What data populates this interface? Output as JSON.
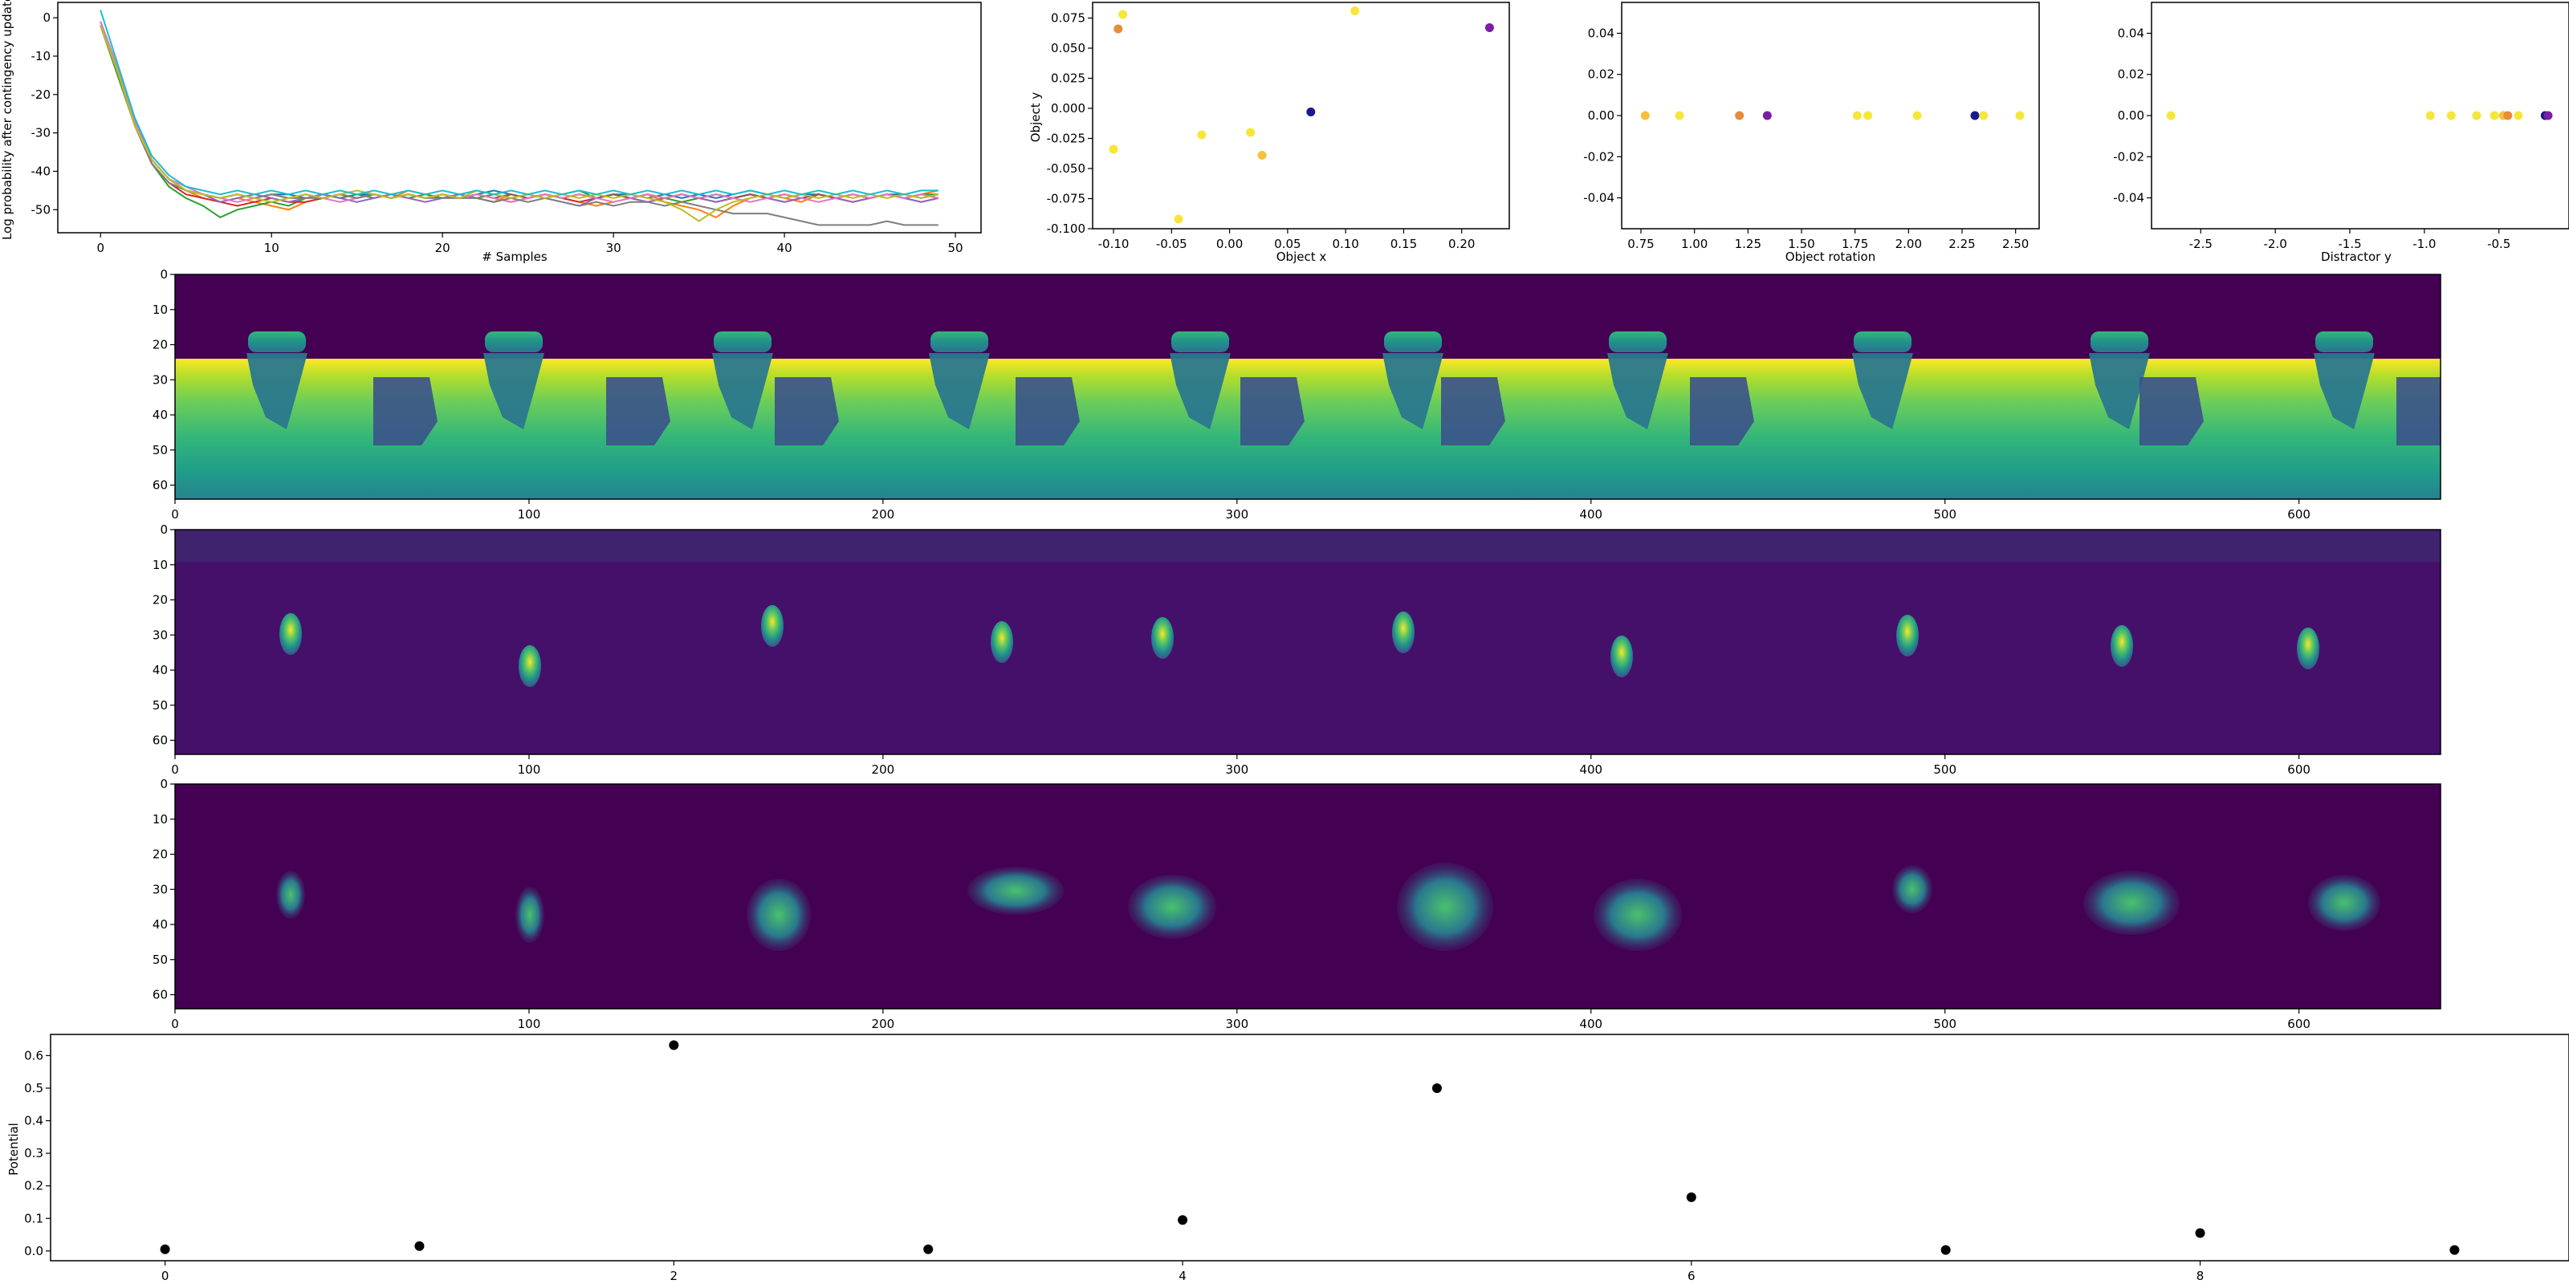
{
  "chart_data": [
    {
      "type": "line",
      "xlabel": "# Samples",
      "ylabel": "Log probability after contingency update",
      "xlim": [
        -2.5,
        51.5
      ],
      "ylim": [
        -56,
        4
      ],
      "xticks": [
        0,
        10,
        20,
        30,
        40,
        50
      ],
      "yticks": [
        0,
        -10,
        -20,
        -30,
        -40,
        -50
      ],
      "grid": false,
      "n_points": 50,
      "series_colors": [
        "#1f77b4",
        "#ff7f0e",
        "#2ca02c",
        "#d62728",
        "#9467bd",
        "#8c564b",
        "#e377c2",
        "#7f7f7f",
        "#bcbd22",
        "#17becf"
      ],
      "series": [
        {
          "values": [
            -1,
            -13,
            -27,
            -37,
            -42,
            -45,
            -46,
            -47,
            -46,
            -47,
            -46,
            -46,
            -47,
            -46,
            -47,
            -46,
            -46,
            -47,
            -46,
            -47,
            -46,
            -47,
            -46,
            -45,
            -46,
            -47,
            -46,
            -47,
            -46,
            -47,
            -46,
            -46,
            -47,
            -46,
            -47,
            -46,
            -47,
            -46,
            -45,
            -46,
            -47,
            -46,
            -46,
            -47,
            -46,
            -47,
            -46,
            -46,
            -47,
            -46
          ]
        },
        {
          "values": [
            -2,
            -14,
            -28,
            -38,
            -43,
            -45,
            -47,
            -48,
            -47,
            -48,
            -49,
            -50,
            -48,
            -47,
            -46,
            -47,
            -46,
            -47,
            -45,
            -46,
            -47,
            -46,
            -47,
            -48,
            -46,
            -47,
            -46,
            -47,
            -48,
            -49,
            -48,
            -47,
            -46,
            -48,
            -49,
            -50,
            -52,
            -49,
            -47,
            -46,
            -47,
            -48,
            -46,
            -47,
            -46,
            -47,
            -46,
            -47,
            -46,
            -45
          ]
        },
        {
          "values": [
            -2,
            -15,
            -28,
            -38,
            -44,
            -47,
            -49,
            -52,
            -50,
            -49,
            -48,
            -49,
            -47,
            -46,
            -47,
            -46,
            -47,
            -46,
            -47,
            -46,
            -47,
            -46,
            -47,
            -46,
            -47,
            -46,
            -47,
            -46,
            -45,
            -47,
            -46,
            -47,
            -46,
            -47,
            -48,
            -47,
            -46,
            -47,
            -46,
            -47,
            -46,
            -47,
            -46,
            -47,
            -46,
            -47,
            -46,
            -47,
            -46,
            -46
          ]
        },
        {
          "values": [
            -2,
            -14,
            -28,
            -38,
            -43,
            -46,
            -47,
            -48,
            -49,
            -48,
            -47,
            -48,
            -48,
            -47,
            -46,
            -47,
            -46,
            -47,
            -46,
            -47,
            -46,
            -47,
            -46,
            -47,
            -48,
            -47,
            -46,
            -47,
            -48,
            -47,
            -46,
            -47,
            -48,
            -47,
            -46,
            -47,
            -48,
            -47,
            -46,
            -47,
            -48,
            -47,
            -46,
            -47,
            -48,
            -47,
            -46,
            -47,
            -48,
            -47
          ]
        },
        {
          "values": [
            -1,
            -13,
            -27,
            -37,
            -42,
            -45,
            -46,
            -48,
            -47,
            -46,
            -47,
            -48,
            -47,
            -46,
            -47,
            -48,
            -47,
            -46,
            -47,
            -48,
            -47,
            -46,
            -47,
            -48,
            -47,
            -46,
            -47,
            -48,
            -49,
            -47,
            -46,
            -47,
            -48,
            -47,
            -46,
            -47,
            -48,
            -47,
            -46,
            -47,
            -48,
            -47,
            -46,
            -47,
            -48,
            -47,
            -46,
            -47,
            -48,
            -47
          ]
        },
        {
          "values": [
            -2,
            -14,
            -28,
            -37,
            -42,
            -45,
            -46,
            -47,
            -46,
            -47,
            -46,
            -47,
            -46,
            -47,
            -46,
            -47,
            -46,
            -47,
            -46,
            -47,
            -46,
            -47,
            -46,
            -47,
            -46,
            -47,
            -46,
            -47,
            -46,
            -47,
            -46,
            -47,
            -46,
            -47,
            -46,
            -47,
            -46,
            -47,
            -46,
            -47,
            -46,
            -47,
            -46,
            -47,
            -46,
            -47,
            -46,
            -47,
            -46,
            -47
          ]
        },
        {
          "values": [
            -1,
            -13,
            -27,
            -37,
            -42,
            -44,
            -46,
            -47,
            -48,
            -47,
            -48,
            -47,
            -46,
            -47,
            -48,
            -47,
            -46,
            -47,
            -46,
            -47,
            -46,
            -47,
            -46,
            -47,
            -48,
            -47,
            -46,
            -47,
            -46,
            -47,
            -48,
            -47,
            -46,
            -47,
            -46,
            -47,
            -46,
            -47,
            -48,
            -47,
            -46,
            -47,
            -48,
            -47,
            -46,
            -47,
            -46,
            -47,
            -46,
            -47
          ]
        },
        {
          "values": [
            -2,
            -14,
            -28,
            -38,
            -43,
            -45,
            -46,
            -47,
            -46,
            -47,
            -46,
            -47,
            -47,
            -47,
            -46,
            -47,
            -46,
            -47,
            -46,
            -47,
            -47,
            -47,
            -47,
            -48,
            -47,
            -48,
            -47,
            -48,
            -49,
            -48,
            -49,
            -48,
            -48,
            -49,
            -48,
            -49,
            -50,
            -51,
            -51,
            -51,
            -52,
            -53,
            -54,
            -54,
            -54,
            -54,
            -53,
            -54,
            -54,
            -54
          ]
        },
        {
          "values": [
            -2,
            -14,
            -28,
            -37,
            -42,
            -45,
            -46,
            -47,
            -46,
            -47,
            -48,
            -47,
            -46,
            -47,
            -46,
            -45,
            -46,
            -47,
            -46,
            -47,
            -46,
            -47,
            -45,
            -46,
            -47,
            -46,
            -47,
            -46,
            -47,
            -46,
            -47,
            -46,
            -47,
            -48,
            -50,
            -53,
            -50,
            -48,
            -47,
            -46,
            -47,
            -46,
            -47,
            -46,
            -47,
            -46,
            -47,
            -46,
            -47,
            -46
          ]
        },
        {
          "values": [
            2,
            -12,
            -26,
            -36,
            -41,
            -44,
            -45,
            -46,
            -45,
            -46,
            -45,
            -46,
            -45,
            -46,
            -45,
            -46,
            -45,
            -46,
            -45,
            -46,
            -45,
            -46,
            -45,
            -46,
            -45,
            -46,
            -45,
            -46,
            -45,
            -46,
            -45,
            -46,
            -45,
            -46,
            -45,
            -46,
            -45,
            -46,
            -45,
            -46,
            -45,
            -46,
            -45,
            -46,
            -45,
            -46,
            -45,
            -46,
            -45,
            -45
          ]
        }
      ]
    },
    {
      "type": "scatter",
      "xlabel": "Object x",
      "ylabel": "Object y",
      "xlim": [
        -0.118,
        0.241
      ],
      "ylim": [
        -0.1,
        0.088
      ],
      "xticks": [
        "-0.10",
        "-0.05",
        "0.00",
        "0.05",
        "0.10",
        "0.15",
        "0.20"
      ],
      "xtick_values": [
        -0.1,
        -0.05,
        0.0,
        0.05,
        0.1,
        0.15,
        0.2
      ],
      "yticks": [
        "-0.100",
        "-0.075",
        "-0.050",
        "-0.025",
        "0.000",
        "0.025",
        "0.050",
        "0.075"
      ],
      "ytick_values": [
        -0.1,
        -0.075,
        -0.05,
        -0.025,
        0.0,
        0.025,
        0.05,
        0.075
      ],
      "points": [
        {
          "x": -0.096,
          "y": 0.066,
          "color": "#e88b3a"
        },
        {
          "x": -0.092,
          "y": 0.078,
          "color": "#f6e63a"
        },
        {
          "x": 0.108,
          "y": 0.081,
          "color": "#f6e63a"
        },
        {
          "x": 0.224,
          "y": 0.067,
          "color": "#7a1ea6"
        },
        {
          "x": -0.1,
          "y": -0.034,
          "color": "#f6e63a"
        },
        {
          "x": -0.024,
          "y": -0.022,
          "color": "#f6e63a"
        },
        {
          "x": 0.018,
          "y": -0.02,
          "color": "#f6e63a"
        },
        {
          "x": 0.028,
          "y": -0.039,
          "color": "#f6c03a"
        },
        {
          "x": 0.07,
          "y": -0.003,
          "color": "#1a1a8c"
        },
        {
          "x": -0.044,
          "y": -0.092,
          "color": "#f6e63a"
        }
      ]
    },
    {
      "type": "scatter",
      "xlabel": "Object rotation",
      "ylabel": "",
      "xlim": [
        0.66,
        2.61
      ],
      "ylim": [
        -0.055,
        0.055
      ],
      "xticks": [
        "0.75",
        "1.00",
        "1.25",
        "1.50",
        "1.75",
        "2.00",
        "2.25",
        "2.50"
      ],
      "xtick_values": [
        0.75,
        1.0,
        1.25,
        1.5,
        1.75,
        2.0,
        2.25,
        2.5
      ],
      "yticks": [
        "-0.04",
        "-0.02",
        "0.00",
        "0.02",
        "0.04"
      ],
      "ytick_values": [
        -0.04,
        -0.02,
        0.0,
        0.02,
        0.04
      ],
      "points": [
        {
          "x": 0.77,
          "y": 0,
          "color": "#f6c03a"
        },
        {
          "x": 0.93,
          "y": 0,
          "color": "#f6e63a"
        },
        {
          "x": 1.21,
          "y": 0,
          "color": "#e88b3a"
        },
        {
          "x": 1.34,
          "y": 0,
          "color": "#7a1ea6"
        },
        {
          "x": 1.76,
          "y": 0,
          "color": "#f6e63a"
        },
        {
          "x": 1.81,
          "y": 0,
          "color": "#f6e63a"
        },
        {
          "x": 2.04,
          "y": 0,
          "color": "#f6e63a"
        },
        {
          "x": 2.31,
          "y": 0,
          "color": "#1a1a8c"
        },
        {
          "x": 2.35,
          "y": 0,
          "color": "#f6e63a"
        },
        {
          "x": 2.52,
          "y": 0,
          "color": "#f6e63a"
        }
      ]
    },
    {
      "type": "scatter",
      "xlabel": "Distractor y",
      "ylabel": "",
      "xlim": [
        -2.83,
        -0.03
      ],
      "ylim": [
        -0.055,
        0.055
      ],
      "xticks": [
        "-2.5",
        "-2.0",
        "-1.5",
        "-1.0",
        "-0.5"
      ],
      "xtick_values": [
        -2.5,
        -2.0,
        -1.5,
        -1.0,
        -0.5
      ],
      "yticks": [
        "-0.04",
        "-0.02",
        "0.00",
        "0.02",
        "0.04"
      ],
      "ytick_values": [
        -0.04,
        -0.02,
        0.0,
        0.02,
        0.04
      ],
      "points": [
        {
          "x": -2.7,
          "y": 0,
          "color": "#f6e63a"
        },
        {
          "x": -0.96,
          "y": 0,
          "color": "#f6e63a"
        },
        {
          "x": -0.82,
          "y": 0,
          "color": "#f6e63a"
        },
        {
          "x": -0.65,
          "y": 0,
          "color": "#f6e63a"
        },
        {
          "x": -0.53,
          "y": 0,
          "color": "#f6e63a"
        },
        {
          "x": -0.47,
          "y": 0,
          "color": "#f6c03a"
        },
        {
          "x": -0.44,
          "y": 0,
          "color": "#e88b3a"
        },
        {
          "x": -0.37,
          "y": 0,
          "color": "#f6e63a"
        },
        {
          "x": -0.19,
          "y": 0,
          "color": "#1a1a8c"
        },
        {
          "x": -0.17,
          "y": 0,
          "color": "#7a1ea6"
        }
      ]
    },
    {
      "type": "heatmap",
      "colormap": "viridis",
      "xticks": [
        0,
        100,
        200,
        300,
        400,
        500,
        600
      ],
      "yticks": [
        0,
        10,
        20,
        30,
        40,
        50,
        60
      ],
      "xlim": [
        0,
        640
      ],
      "ylim": [
        64,
        0
      ]
    },
    {
      "type": "heatmap",
      "colormap": "viridis",
      "xticks": [
        0,
        100,
        200,
        300,
        400,
        500,
        600
      ],
      "yticks": [
        0,
        10,
        20,
        30,
        40,
        50,
        60
      ],
      "xlim": [
        0,
        640
      ],
      "ylim": [
        64,
        0
      ]
    },
    {
      "type": "heatmap",
      "colormap": "viridis",
      "xticks": [
        0,
        100,
        200,
        300,
        400,
        500,
        600
      ],
      "yticks": [
        0,
        10,
        20,
        30,
        40,
        50,
        60
      ],
      "xlim": [
        0,
        640
      ],
      "ylim": [
        64,
        0
      ]
    },
    {
      "type": "scatter",
      "xlabel": "",
      "ylabel": "Potential",
      "xlim": [
        -0.45,
        9.45
      ],
      "ylim": [
        -0.03,
        0.665
      ],
      "xticks": [
        0,
        2,
        4,
        6,
        8
      ],
      "yticks": [
        "0.0",
        "0.1",
        "0.2",
        "0.3",
        "0.4",
        "0.5",
        "0.6"
      ],
      "ytick_values": [
        0.0,
        0.1,
        0.2,
        0.3,
        0.4,
        0.5,
        0.6
      ],
      "color": "#000000",
      "x": [
        0,
        1,
        2,
        3,
        4,
        5,
        6,
        7,
        8,
        9
      ],
      "values": [
        0.005,
        0.015,
        0.632,
        0.005,
        0.095,
        0.5,
        0.165,
        0.003,
        0.055,
        0.003
      ]
    }
  ]
}
